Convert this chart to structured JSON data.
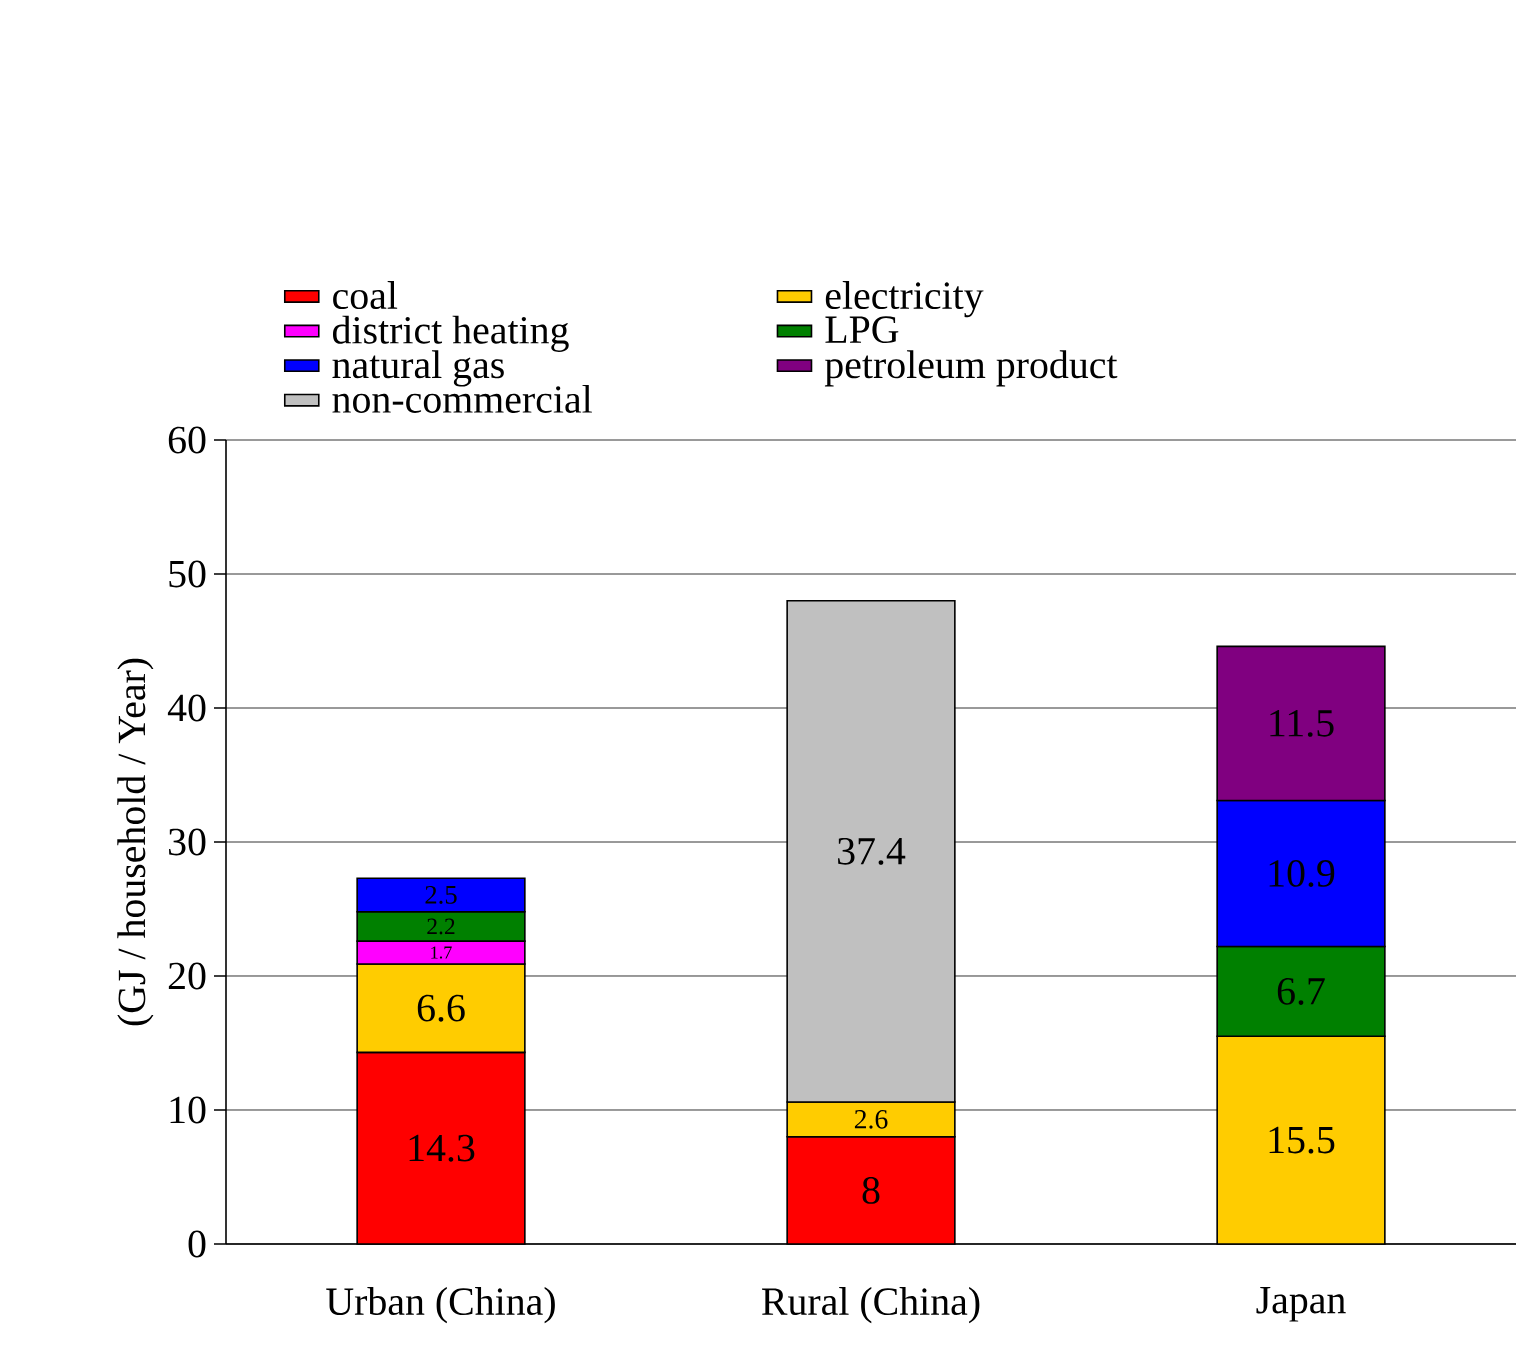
{
  "chart_data": {
    "type": "bar",
    "stacked": true,
    "ylabel": "(GJ / household / Year)",
    "categories": [
      "Urban (China)",
      "Rural (China)",
      "Japan"
    ],
    "series": [
      {
        "name": "coal",
        "color": "#ff0000",
        "values": [
          14.3,
          8,
          null
        ]
      },
      {
        "name": "electricity",
        "color": "#ffcc00",
        "values": [
          6.6,
          2.6,
          15.5
        ]
      },
      {
        "name": "district heating",
        "color": "#ff00ff",
        "values": [
          1.7,
          null,
          null
        ]
      },
      {
        "name": "LPG",
        "color": "#008000",
        "values": [
          2.2,
          null,
          6.7
        ]
      },
      {
        "name": "natural gas",
        "color": "#0000ff",
        "values": [
          2.5,
          null,
          10.9
        ]
      },
      {
        "name": "petroleum product",
        "color": "#800080",
        "values": [
          null,
          null,
          11.5
        ]
      },
      {
        "name": "non-commercial",
        "color": "#c0c0c0",
        "values": [
          null,
          37.4,
          null
        ]
      }
    ],
    "ylim": [
      0,
      60
    ],
    "yticks": [
      0,
      10,
      20,
      30,
      40,
      50,
      60
    ],
    "grid": "y",
    "legend": "top",
    "data_labels": true
  }
}
